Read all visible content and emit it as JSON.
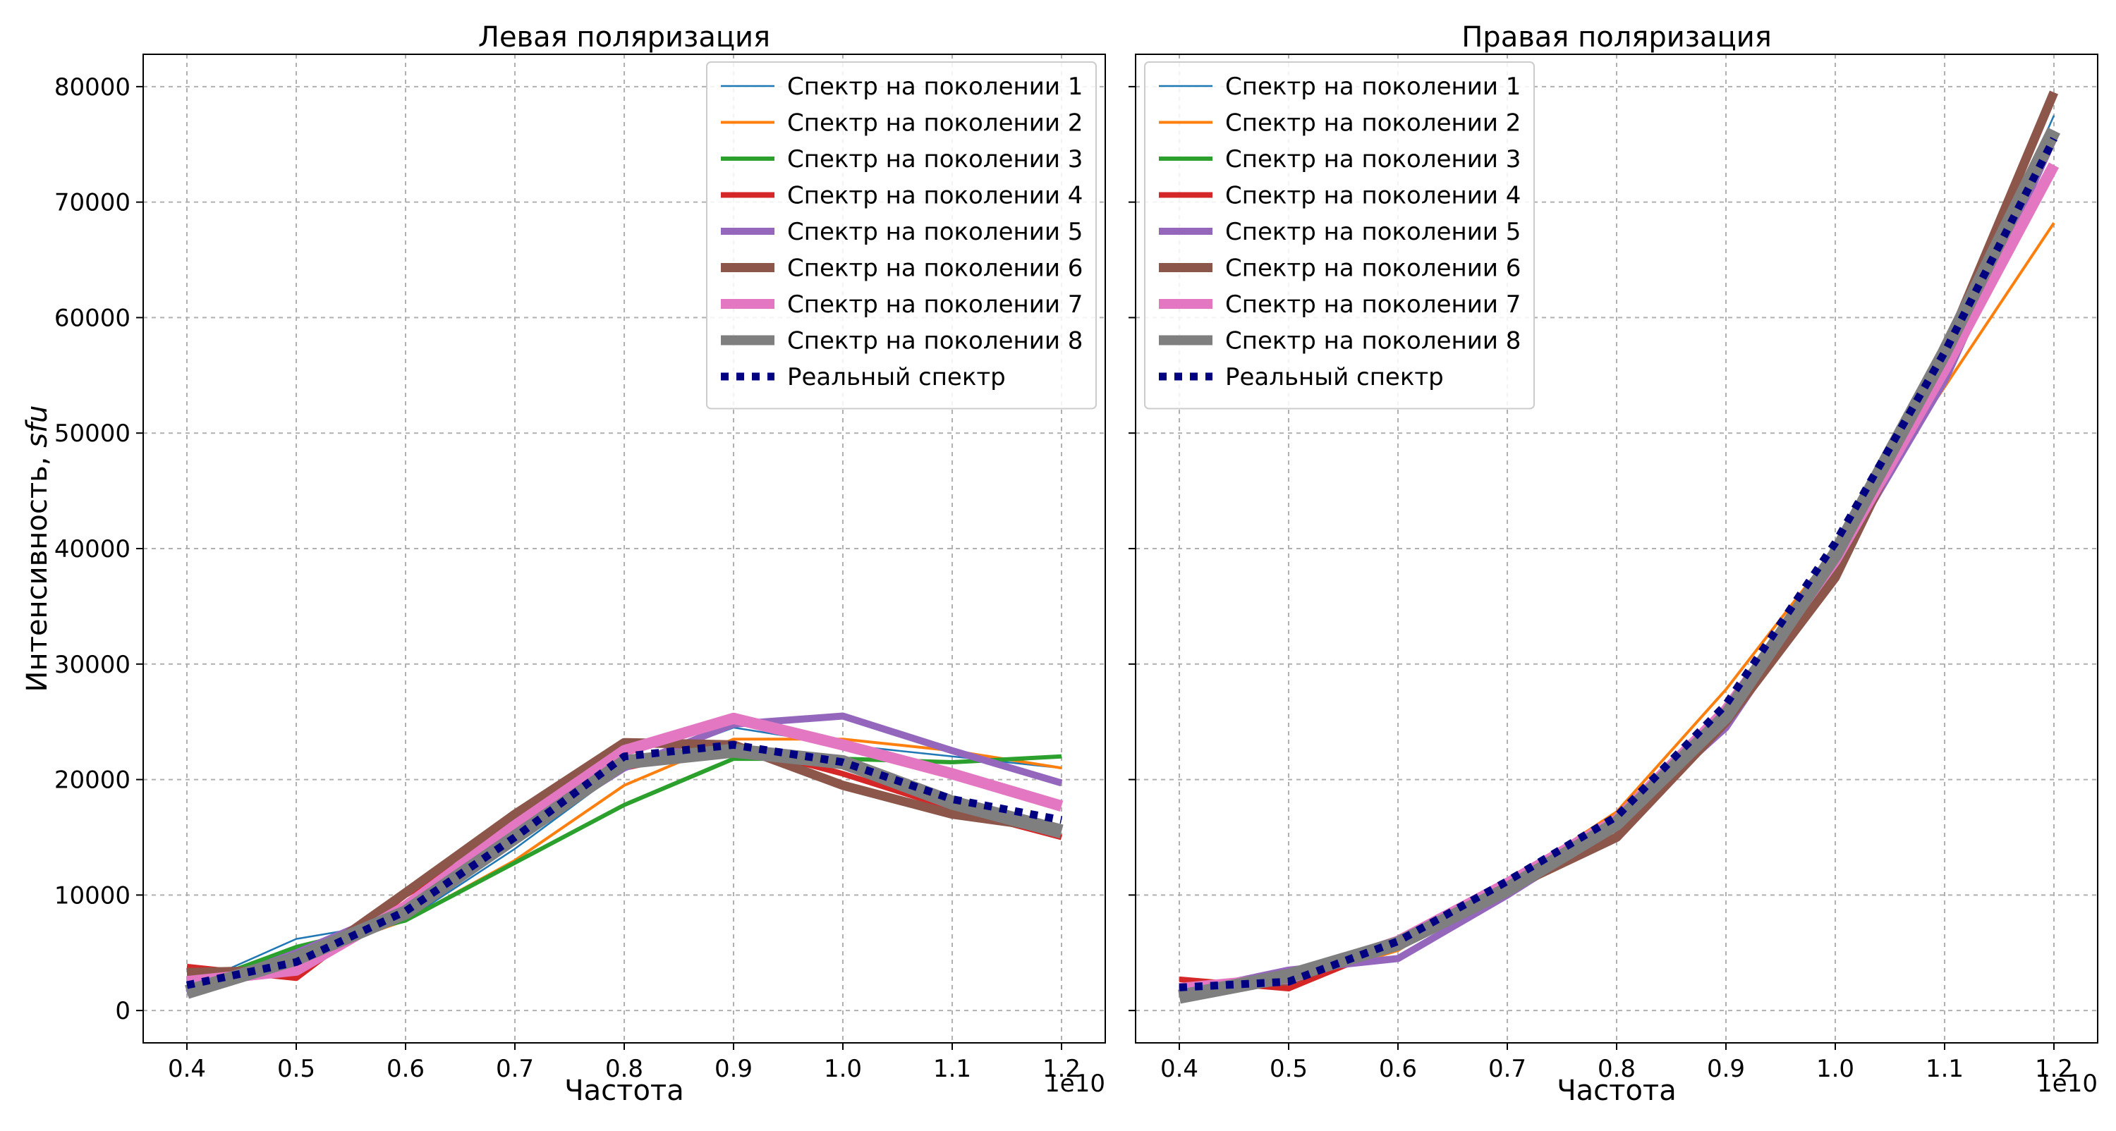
{
  "chart_data": [
    {
      "type": "line",
      "title": "Левая поляризация",
      "xlabel": "Частота",
      "ylabel": "Интенсивность, sfu",
      "ylabel_prefix": "Интенсивность, ",
      "ylabel_unit": "sfu",
      "x_offset_label": "1e10",
      "x": [
        0.4,
        0.5,
        0.6,
        0.7,
        0.8,
        0.9,
        1.0,
        1.1,
        1.2
      ],
      "xlim": [
        0.36,
        1.24
      ],
      "ylim": [
        -2800,
        82800
      ],
      "xticks": [
        "0.4",
        "0.5",
        "0.6",
        "0.7",
        "0.8",
        "0.9",
        "1.0",
        "1.1",
        "1.2"
      ],
      "yticks": [
        "0",
        "10000",
        "20000",
        "30000",
        "40000",
        "50000",
        "60000",
        "70000",
        "80000"
      ],
      "grid": true,
      "legend_position": "top-right",
      "series": [
        {
          "name": "Спектр на поколении 1",
          "values": [
            2000,
            6200,
            7800,
            14000,
            21000,
            24500,
            23000,
            22000,
            21000
          ]
        },
        {
          "name": "Спектр на поколении 2",
          "values": [
            2300,
            4500,
            7800,
            13000,
            19500,
            23500,
            23500,
            22500,
            21000
          ]
        },
        {
          "name": "Спектр на поколении 3",
          "values": [
            2000,
            5500,
            7800,
            12800,
            17800,
            21800,
            21800,
            21500,
            22000
          ]
        },
        {
          "name": "Спектр на поколении 4",
          "values": [
            3800,
            2800,
            10000,
            15500,
            21000,
            23000,
            20500,
            17500,
            15000
          ]
        },
        {
          "name": "Спектр на поколении 5",
          "values": [
            1500,
            5000,
            9000,
            15000,
            21000,
            24800,
            25500,
            22500,
            19700
          ]
        },
        {
          "name": "Спектр на поколении 6",
          "values": [
            3300,
            3500,
            10200,
            17000,
            23200,
            23000,
            19500,
            17000,
            15700
          ]
        },
        {
          "name": "Спектр на поколении 7",
          "values": [
            2500,
            3500,
            9000,
            16000,
            22500,
            25300,
            23000,
            20500,
            17700
          ]
        },
        {
          "name": "Спектр на поколении 8",
          "values": [
            1600,
            4500,
            8500,
            15000,
            21500,
            22500,
            21500,
            18000,
            15500
          ]
        },
        {
          "name": "Реальный спектр",
          "values": [
            2200,
            4200,
            8600,
            15000,
            22000,
            23000,
            21500,
            18300,
            16500
          ]
        }
      ]
    },
    {
      "type": "line",
      "title": "Правая поляризация",
      "xlabel": "Частота",
      "x_offset_label": "1e10",
      "x": [
        0.4,
        0.5,
        0.6,
        0.7,
        0.8,
        0.9,
        1.0,
        1.1,
        1.2
      ],
      "xlim": [
        0.36,
        1.24
      ],
      "ylim": [
        -2800,
        82800
      ],
      "xticks": [
        "0.4",
        "0.5",
        "0.6",
        "0.7",
        "0.8",
        "0.9",
        "1.0",
        "1.1",
        "1.2"
      ],
      "grid": true,
      "legend_position": "top-left",
      "series": [
        {
          "name": "Спектр на поколении 1",
          "values": [
            2300,
            2200,
            5500,
            11000,
            16500,
            26000,
            39000,
            56000,
            77500
          ]
        },
        {
          "name": "Спектр на поколении 2",
          "values": [
            2000,
            2300,
            5200,
            11000,
            17200,
            27800,
            40000,
            54000,
            68200
          ]
        },
        {
          "name": "Спектр на поколении 3",
          "values": [
            2000,
            2500,
            5800,
            11200,
            16500,
            25500,
            39000,
            56500,
            76000
          ]
        },
        {
          "name": "Спектр на поколении 4",
          "values": [
            2700,
            1900,
            5800,
            10800,
            16000,
            26000,
            38500,
            55500,
            75500
          ]
        },
        {
          "name": "Спектр на поколении 5",
          "values": [
            1500,
            3500,
            4500,
            10000,
            16000,
            24500,
            38500,
            54500,
            75500
          ]
        },
        {
          "name": "Спектр на поколении 6",
          "values": [
            1700,
            2600,
            6000,
            10500,
            15000,
            25000,
            37500,
            57000,
            79500
          ]
        },
        {
          "name": "Спектр на поколении 7",
          "values": [
            1900,
            2800,
            6000,
            11000,
            16500,
            26000,
            39000,
            55500,
            73200
          ]
        },
        {
          "name": "Спектр на поколении 8",
          "values": [
            1200,
            3000,
            5800,
            10500,
            16200,
            25500,
            39500,
            57000,
            76200
          ]
        },
        {
          "name": "Реальный спектр",
          "values": [
            2000,
            2500,
            6000,
            11200,
            16800,
            26500,
            40500,
            57000,
            75500
          ]
        }
      ]
    }
  ],
  "style": {
    "series_colors": [
      "#1f77b4",
      "#ff7f0e",
      "#2ca02c",
      "#d62728",
      "#9467bd",
      "#8c564b",
      "#e377c2",
      "#7f7f7f",
      "#000080"
    ],
    "real_spectrum_style": "dotted"
  }
}
